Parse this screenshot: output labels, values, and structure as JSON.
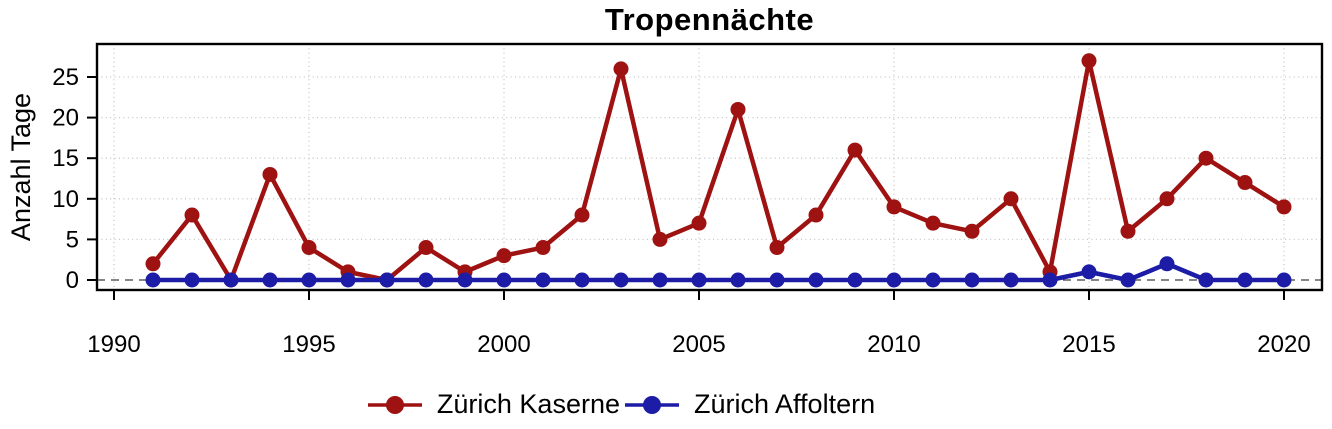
{
  "chart_data": {
    "type": "line",
    "title": "Tropennächte",
    "ylabel": "Anzahl Tage",
    "xlabel": "",
    "x": [
      1991,
      1992,
      1993,
      1994,
      1995,
      1996,
      1997,
      1998,
      1999,
      2000,
      2001,
      2002,
      2003,
      2004,
      2005,
      2006,
      2007,
      2008,
      2009,
      2010,
      2011,
      2012,
      2013,
      2014,
      2015,
      2016,
      2017,
      2018,
      2019,
      2020
    ],
    "series": [
      {
        "name": "Zürich Kaserne",
        "color": "#9e1212",
        "values": [
          2,
          8,
          0,
          13,
          4,
          1,
          0,
          4,
          1,
          3,
          4,
          8,
          26,
          5,
          7,
          21,
          4,
          8,
          16,
          9,
          7,
          6,
          10,
          1,
          27,
          6,
          10,
          15,
          12,
          9
        ]
      },
      {
        "name": "Zürich Affoltern",
        "color": "#1c1ca6",
        "values": [
          0,
          0,
          0,
          0,
          0,
          0,
          0,
          0,
          0,
          0,
          0,
          0,
          0,
          0,
          0,
          0,
          0,
          0,
          0,
          0,
          0,
          0,
          0,
          0,
          1,
          0,
          2,
          0,
          0,
          0
        ]
      }
    ],
    "x_ticks": [
      1990,
      1995,
      2000,
      2005,
      2010,
      2015,
      2020
    ],
    "y_ticks": [
      0,
      5,
      10,
      15,
      20,
      25
    ],
    "xlim": [
      1989.6,
      2021.0
    ],
    "ylim": [
      -1.2,
      29.1
    ],
    "grid": "dotted",
    "zero_reference_line": true,
    "legend_position": "bottom-center"
  }
}
